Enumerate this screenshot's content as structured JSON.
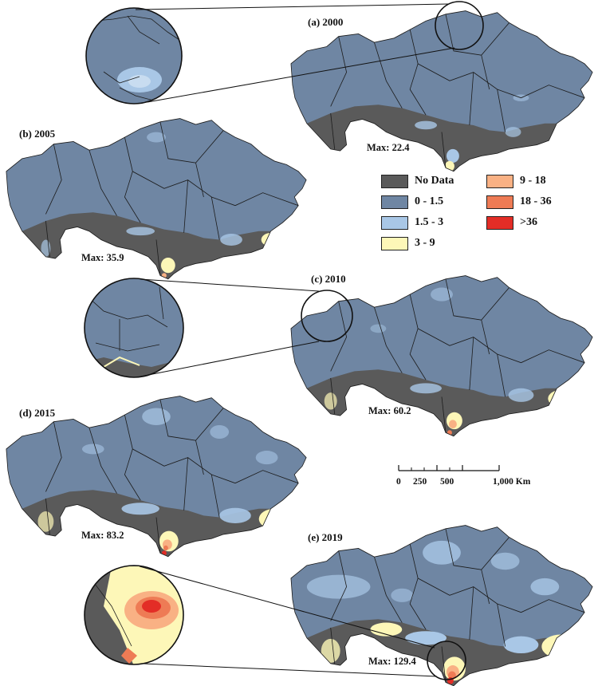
{
  "panels": [
    {
      "label": "(a) 2000",
      "max": "Max: 22.4"
    },
    {
      "label": "(b) 2005",
      "max": "Max: 35.9"
    },
    {
      "label": "(c) 2010",
      "max": "Max: 60.2"
    },
    {
      "label": "(d) 2015",
      "max": "Max: 83.2"
    },
    {
      "label": "(e) 2019",
      "max": "Max: 129.4"
    }
  ],
  "legend": [
    {
      "label": "No Data",
      "color": "#5a5a5a"
    },
    {
      "label": "0 - 1.5",
      "color": "#6f86a3"
    },
    {
      "label": "1.5 - 3",
      "color": "#a9c7e6"
    },
    {
      "label": "3 - 9",
      "color": "#fdf7b8"
    },
    {
      "label": "9 - 18",
      "color": "#f9b184"
    },
    {
      "label": "18 - 36",
      "color": "#ee7b55"
    },
    {
      "label": ">36",
      "color": "#e32d26"
    }
  ],
  "scale": {
    "ticks": [
      "0",
      "250",
      "500",
      "1,000 Km"
    ]
  },
  "colors": {
    "no_data": "#5a5a5a",
    "base": "#6f86a3",
    "low": "#a9c7e6",
    "mid": "#fdf7b8",
    "high1": "#f9b184",
    "high2": "#ee7b55",
    "high3": "#e32d26",
    "border": "#1c1c1c"
  }
}
